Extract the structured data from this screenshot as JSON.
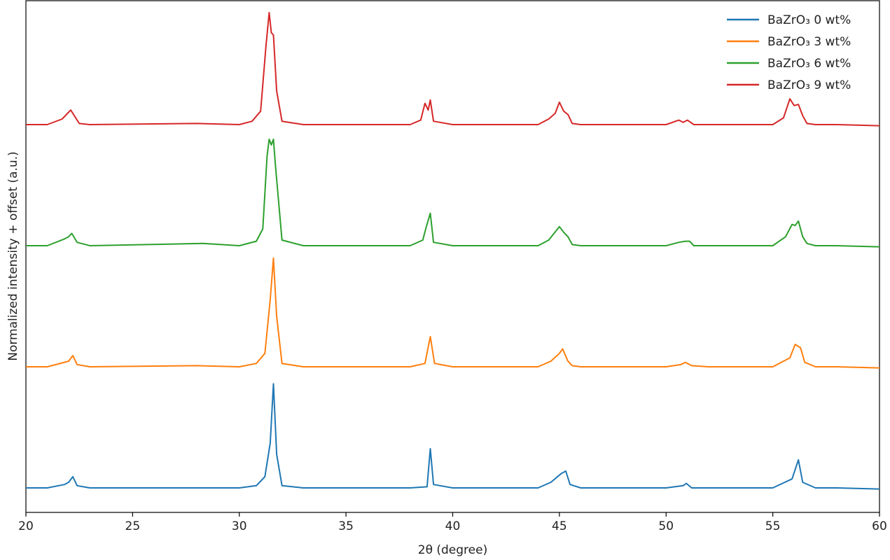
{
  "chart_data": {
    "type": "line",
    "title": "",
    "xlabel": "2θ (degree)",
    "ylabel": "Normalized intensity + offset (a.u.)",
    "xlim": [
      20,
      60
    ],
    "xticks": [
      20,
      25,
      30,
      35,
      40,
      45,
      50,
      55,
      60
    ],
    "y_tick_labels_shown": false,
    "grid": false,
    "legend_position": "top-right",
    "series": [
      {
        "name": "BaZrO₃ 0 wt%",
        "color": "#1f77b4",
        "offset": 0.0,
        "points": [
          [
            20,
            0.0
          ],
          [
            21,
            0.0
          ],
          [
            21.8,
            0.03
          ],
          [
            22.0,
            0.05
          ],
          [
            22.2,
            0.1
          ],
          [
            22.4,
            0.02
          ],
          [
            23,
            0.0
          ],
          [
            28,
            0.0
          ],
          [
            30,
            0.0
          ],
          [
            30.8,
            0.02
          ],
          [
            31.2,
            0.1
          ],
          [
            31.45,
            0.4
          ],
          [
            31.6,
            0.93
          ],
          [
            31.75,
            0.3
          ],
          [
            32.0,
            0.02
          ],
          [
            33,
            0.0
          ],
          [
            38,
            0.0
          ],
          [
            38.8,
            0.01
          ],
          [
            38.95,
            0.35
          ],
          [
            39.1,
            0.03
          ],
          [
            40,
            0.0
          ],
          [
            44,
            0.0
          ],
          [
            44.6,
            0.05
          ],
          [
            45.1,
            0.13
          ],
          [
            45.3,
            0.15
          ],
          [
            45.5,
            0.03
          ],
          [
            46,
            0.0
          ],
          [
            50,
            0.0
          ],
          [
            50.8,
            0.02
          ],
          [
            50.95,
            0.04
          ],
          [
            51.2,
            0.0
          ],
          [
            52,
            0.0
          ],
          [
            55,
            0.0
          ],
          [
            55.9,
            0.08
          ],
          [
            56.2,
            0.25
          ],
          [
            56.4,
            0.05
          ],
          [
            57,
            0.0
          ],
          [
            58,
            0.0
          ],
          [
            60,
            -0.01
          ]
        ]
      },
      {
        "name": "BaZrO₃ 3 wt%",
        "color": "#ff7f0e",
        "offset": 1.0,
        "points": [
          [
            20,
            0.0
          ],
          [
            21,
            0.0
          ],
          [
            21.8,
            0.04
          ],
          [
            22.0,
            0.05
          ],
          [
            22.2,
            0.1
          ],
          [
            22.4,
            0.02
          ],
          [
            23,
            0.0
          ],
          [
            28,
            0.01
          ],
          [
            30,
            0.0
          ],
          [
            30.8,
            0.03
          ],
          [
            31.2,
            0.12
          ],
          [
            31.45,
            0.6
          ],
          [
            31.6,
            0.97
          ],
          [
            31.75,
            0.45
          ],
          [
            32.0,
            0.03
          ],
          [
            33,
            0.0
          ],
          [
            38,
            0.0
          ],
          [
            38.7,
            0.03
          ],
          [
            38.95,
            0.27
          ],
          [
            39.15,
            0.03
          ],
          [
            40,
            0.0
          ],
          [
            44,
            0.0
          ],
          [
            44.6,
            0.05
          ],
          [
            45.0,
            0.12
          ],
          [
            45.15,
            0.16
          ],
          [
            45.4,
            0.05
          ],
          [
            45.6,
            0.01
          ],
          [
            46,
            0.0
          ],
          [
            50,
            0.0
          ],
          [
            50.7,
            0.02
          ],
          [
            50.9,
            0.04
          ],
          [
            51.2,
            0.01
          ],
          [
            52,
            0.0
          ],
          [
            55,
            0.0
          ],
          [
            55.8,
            0.08
          ],
          [
            56.05,
            0.2
          ],
          [
            56.3,
            0.17
          ],
          [
            56.5,
            0.04
          ],
          [
            57,
            0.0
          ],
          [
            58,
            0.0
          ],
          [
            60,
            -0.01
          ]
        ]
      },
      {
        "name": "BaZrO₃ 6 wt%",
        "color": "#2ca02c",
        "offset": 2.0,
        "points": [
          [
            20,
            0.0
          ],
          [
            21,
            0.0
          ],
          [
            21.8,
            0.06
          ],
          [
            22.0,
            0.08
          ],
          [
            22.15,
            0.11
          ],
          [
            22.4,
            0.03
          ],
          [
            23,
            0.0
          ],
          [
            28.3,
            0.02
          ],
          [
            30,
            0.0
          ],
          [
            30.8,
            0.04
          ],
          [
            31.1,
            0.15
          ],
          [
            31.3,
            0.8
          ],
          [
            31.4,
            0.95
          ],
          [
            31.5,
            0.9
          ],
          [
            31.6,
            0.95
          ],
          [
            31.7,
            0.7
          ],
          [
            32.0,
            0.05
          ],
          [
            33,
            0.0
          ],
          [
            38,
            0.0
          ],
          [
            38.6,
            0.05
          ],
          [
            38.75,
            0.16
          ],
          [
            38.95,
            0.29
          ],
          [
            39.1,
            0.03
          ],
          [
            40,
            0.0
          ],
          [
            44,
            0.0
          ],
          [
            44.5,
            0.05
          ],
          [
            45.0,
            0.17
          ],
          [
            45.2,
            0.12
          ],
          [
            45.4,
            0.08
          ],
          [
            45.6,
            0.01
          ],
          [
            46,
            0.0
          ],
          [
            50,
            0.0
          ],
          [
            50.6,
            0.03
          ],
          [
            50.9,
            0.04
          ],
          [
            51.1,
            0.04
          ],
          [
            51.3,
            0.0
          ],
          [
            52,
            0.0
          ],
          [
            55,
            0.0
          ],
          [
            55.6,
            0.08
          ],
          [
            55.9,
            0.19
          ],
          [
            56.05,
            0.18
          ],
          [
            56.2,
            0.22
          ],
          [
            56.4,
            0.08
          ],
          [
            56.6,
            0.02
          ],
          [
            57,
            0.0
          ],
          [
            58,
            0.0
          ],
          [
            60,
            -0.01
          ]
        ]
      },
      {
        "name": "BaZrO₃ 9 wt%",
        "color": "#d62728",
        "offset": 3.0,
        "points": [
          [
            20,
            0.0
          ],
          [
            21,
            0.0
          ],
          [
            21.7,
            0.05
          ],
          [
            21.95,
            0.1
          ],
          [
            22.1,
            0.13
          ],
          [
            22.3,
            0.07
          ],
          [
            22.5,
            0.01
          ],
          [
            23,
            0.0
          ],
          [
            28,
            0.01
          ],
          [
            30,
            0.0
          ],
          [
            30.6,
            0.03
          ],
          [
            31.0,
            0.12
          ],
          [
            31.25,
            0.7
          ],
          [
            31.4,
            1.0
          ],
          [
            31.5,
            0.82
          ],
          [
            31.6,
            0.8
          ],
          [
            31.75,
            0.3
          ],
          [
            32.0,
            0.03
          ],
          [
            33,
            0.0
          ],
          [
            38,
            0.0
          ],
          [
            38.5,
            0.04
          ],
          [
            38.7,
            0.19
          ],
          [
            38.85,
            0.13
          ],
          [
            38.95,
            0.22
          ],
          [
            39.1,
            0.03
          ],
          [
            40,
            0.0
          ],
          [
            44,
            0.0
          ],
          [
            44.5,
            0.05
          ],
          [
            44.8,
            0.1
          ],
          [
            45.0,
            0.2
          ],
          [
            45.2,
            0.12
          ],
          [
            45.4,
            0.09
          ],
          [
            45.6,
            0.01
          ],
          [
            46,
            0.0
          ],
          [
            50,
            0.0
          ],
          [
            50.6,
            0.04
          ],
          [
            50.8,
            0.02
          ],
          [
            51.0,
            0.04
          ],
          [
            51.3,
            0.0
          ],
          [
            52,
            0.0
          ],
          [
            55,
            0.0
          ],
          [
            55.5,
            0.06
          ],
          [
            55.8,
            0.23
          ],
          [
            56.0,
            0.17
          ],
          [
            56.2,
            0.18
          ],
          [
            56.4,
            0.08
          ],
          [
            56.6,
            0.01
          ],
          [
            57,
            0.0
          ],
          [
            58,
            0.0
          ],
          [
            60,
            -0.01
          ]
        ]
      }
    ]
  }
}
